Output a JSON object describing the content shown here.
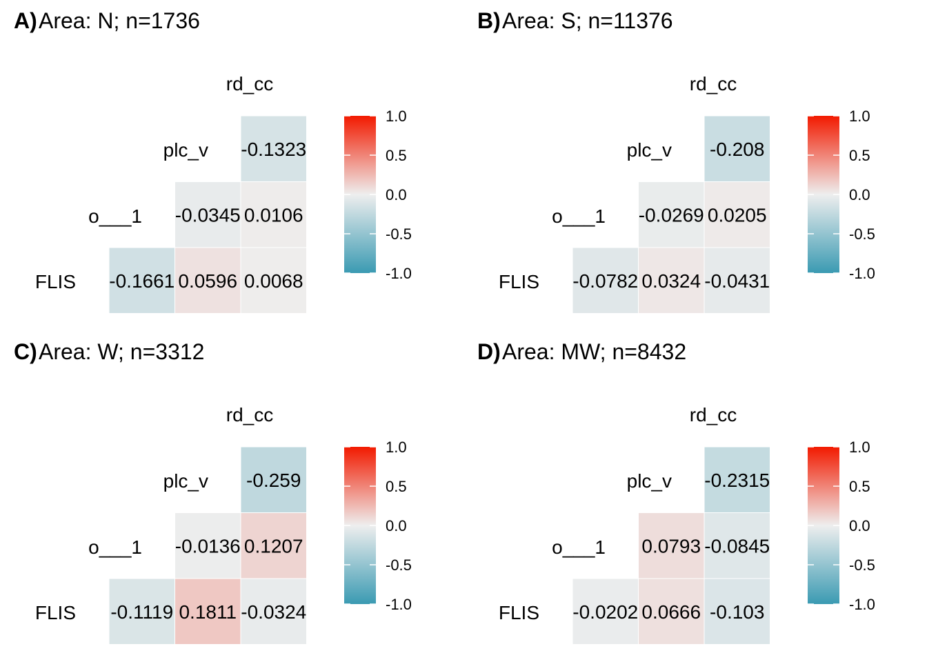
{
  "chart_data": [
    {
      "type": "heatmap",
      "panel": "A)",
      "title": "Area: N; n=1736",
      "variables": [
        "FLIS",
        "o___1",
        "plc_v",
        "rd_cc"
      ],
      "cells": [
        {
          "row": "plc_v",
          "col": "rd_cc",
          "value": -0.1323,
          "label": "-0.1323"
        },
        {
          "row": "o___1",
          "col": "plc_v",
          "value": -0.0345,
          "label": "-0.0345"
        },
        {
          "row": "o___1",
          "col": "rd_cc",
          "value": 0.0106,
          "label": "0.0106"
        },
        {
          "row": "FLIS",
          "col": "o___1",
          "value": -0.1661,
          "label": "-0.1661"
        },
        {
          "row": "FLIS",
          "col": "plc_v",
          "value": 0.0596,
          "label": "0.0596"
        },
        {
          "row": "FLIS",
          "col": "rd_cc",
          "value": 0.0068,
          "label": "0.0068"
        }
      ],
      "legend": {
        "ticks": [
          "1.0",
          "0.5",
          "0.0",
          "-0.5",
          "-1.0"
        ],
        "range": [
          -1,
          1
        ]
      }
    },
    {
      "type": "heatmap",
      "panel": "B)",
      "title": "Area: S; n=11376",
      "variables": [
        "FLIS",
        "o___1",
        "plc_v",
        "rd_cc"
      ],
      "cells": [
        {
          "row": "plc_v",
          "col": "rd_cc",
          "value": -0.208,
          "label": "-0.208"
        },
        {
          "row": "o___1",
          "col": "plc_v",
          "value": -0.0269,
          "label": "-0.0269"
        },
        {
          "row": "o___1",
          "col": "rd_cc",
          "value": 0.0205,
          "label": "0.0205"
        },
        {
          "row": "FLIS",
          "col": "o___1",
          "value": -0.0782,
          "label": "-0.0782"
        },
        {
          "row": "FLIS",
          "col": "plc_v",
          "value": 0.0324,
          "label": "0.0324"
        },
        {
          "row": "FLIS",
          "col": "rd_cc",
          "value": -0.0431,
          "label": "-0.0431"
        }
      ],
      "legend": {
        "ticks": [
          "1.0",
          "0.5",
          "0.0",
          "-0.5",
          "-1.0"
        ],
        "range": [
          -1,
          1
        ]
      }
    },
    {
      "type": "heatmap",
      "panel": "C)",
      "title": "Area: W; n=3312",
      "variables": [
        "FLIS",
        "o___1",
        "plc_v",
        "rd_cc"
      ],
      "cells": [
        {
          "row": "plc_v",
          "col": "rd_cc",
          "value": -0.259,
          "label": "-0.259"
        },
        {
          "row": "o___1",
          "col": "plc_v",
          "value": -0.0136,
          "label": "-0.0136"
        },
        {
          "row": "o___1",
          "col": "rd_cc",
          "value": 0.1207,
          "label": "0.1207"
        },
        {
          "row": "FLIS",
          "col": "o___1",
          "value": -0.1119,
          "label": "-0.1119"
        },
        {
          "row": "FLIS",
          "col": "plc_v",
          "value": 0.1811,
          "label": "0.1811"
        },
        {
          "row": "FLIS",
          "col": "rd_cc",
          "value": -0.0324,
          "label": "-0.0324"
        }
      ],
      "legend": {
        "ticks": [
          "1.0",
          "0.5",
          "0.0",
          "-0.5",
          "-1.0"
        ],
        "range": [
          -1,
          1
        ]
      }
    },
    {
      "type": "heatmap",
      "panel": "D)",
      "title": "Area: MW; n=8432",
      "variables": [
        "FLIS",
        "o___1",
        "plc_v",
        "rd_cc"
      ],
      "cells": [
        {
          "row": "plc_v",
          "col": "rd_cc",
          "value": -0.2315,
          "label": "-0.2315"
        },
        {
          "row": "o___1",
          "col": "plc_v",
          "value": 0.0793,
          "label": "0.0793"
        },
        {
          "row": "o___1",
          "col": "rd_cc",
          "value": -0.0845,
          "label": "-0.0845"
        },
        {
          "row": "FLIS",
          "col": "o___1",
          "value": -0.0202,
          "label": "-0.0202"
        },
        {
          "row": "FLIS",
          "col": "plc_v",
          "value": 0.0666,
          "label": "0.0666"
        },
        {
          "row": "FLIS",
          "col": "rd_cc",
          "value": -0.103,
          "label": "-0.103"
        }
      ],
      "legend": {
        "ticks": [
          "1.0",
          "0.5",
          "0.0",
          "-0.5",
          "-1.0"
        ],
        "range": [
          -1,
          1
        ]
      }
    }
  ],
  "colors": {
    "low": "#3A9AB2",
    "mid": "#EEEEEE",
    "high": "#F21A00",
    "text": "#000000",
    "background": "#FFFFFF"
  }
}
